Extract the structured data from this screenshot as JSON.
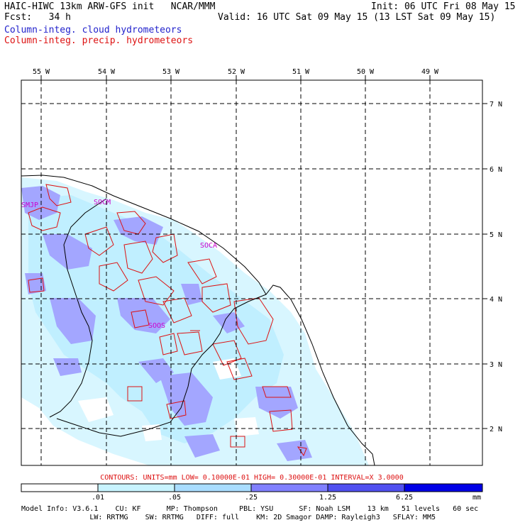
{
  "header": {
    "title_left": "HAIC-HIWC 13km ARW-GFS init   NCAR/MMM",
    "init": "Init: 06 UTC Fri 08 May 15",
    "fcst": "Fcst:   34 h",
    "valid": "Valid: 16 UTC Sat 09 May 15 (13 LST Sat 09 May 15)",
    "field_cloud": "Column-integ. cloud hydrometeors",
    "field_precip": "Column-integ. precip. hydrometeors"
  },
  "map": {
    "lon_labels": [
      "55 W",
      "54 W",
      "53 W",
      "52 W",
      "51 W",
      "50 W",
      "49 W"
    ],
    "lat_labels": [
      "7 N",
      "6 N",
      "5 N",
      "4 N",
      "3 N",
      "2 N"
    ],
    "stations": [
      "SMJP",
      "SOCM",
      "SOCA",
      "SOOS"
    ],
    "colors": {
      "border": "#000000",
      "grid": "#000000",
      "contour": "#dd1111",
      "station": "#cc00cc",
      "fill_light": "#d6f6ff",
      "fill_mid": "#b6f0ff",
      "fill_dark": "#a6a6ff"
    }
  },
  "contour_info": "CONTOURS:  UNITS=mm  LOW= 0.10000E-01  HIGH= 0.30000E-01  INTERVAL=X  3.0000",
  "colorbar": {
    "ticks": [
      ".01",
      ".05",
      ".25",
      "1.25",
      "6.25"
    ],
    "unit": "mm",
    "colors": [
      "#ffffff",
      "#c8f4ff",
      "#a9ddff",
      "#8080ff",
      "#5050f0",
      "#0000e6"
    ]
  },
  "footer": {
    "line1": "Model Info: V3.6.1    CU: KF      MP: Thompson     PBL: YSU      SF: Noah LSM    13 km   51 levels   60 sec",
    "line2": "                LW: RRTMG    SW: RRTMG   DIFF: full    KM: 2D Smagor DAMP: Rayleigh3   SFLAY: MM5"
  }
}
